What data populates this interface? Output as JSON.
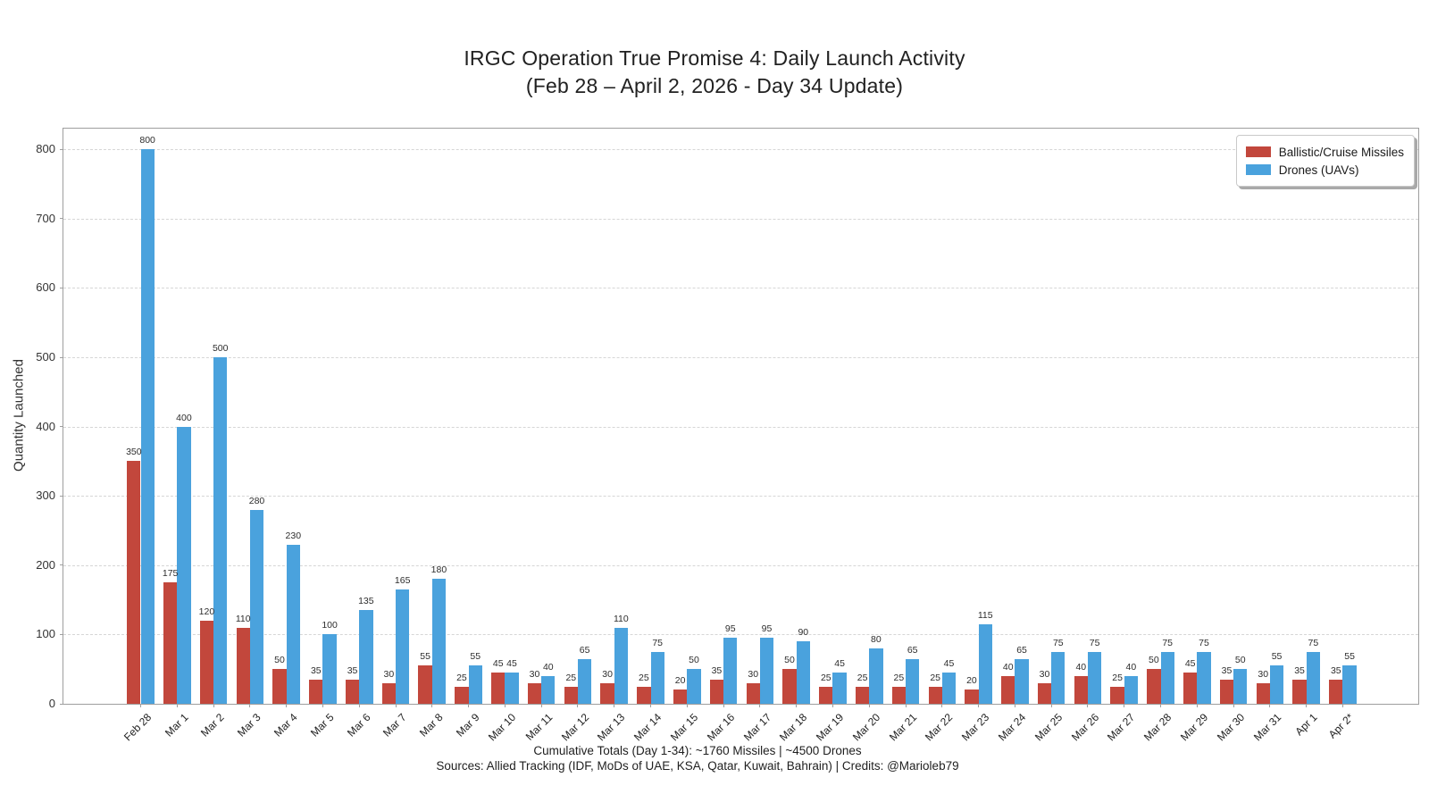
{
  "title": {
    "line1": "IRGC Operation True Promise 4: Daily Launch Activity",
    "line2": "(Feb 28 – April 2, 2026 - Day 34 Update)"
  },
  "axes": {
    "ylabel": "Quantity Launched"
  },
  "footer": {
    "line1": "Cumulative Totals (Day 1-34): ~1760 Missiles | ~4500 Drones",
    "line2": "Sources: Allied Tracking (IDF, MoDs of UAE, KSA, Qatar, Kuwait, Bahrain) | Credits: @Marioleb79"
  },
  "chart_data": {
    "type": "bar",
    "title": "IRGC Operation True Promise 4: Daily Launch Activity (Feb 28 – April 2, 2026 - Day 34 Update)",
    "xlabel": "",
    "ylabel": "Quantity Launched",
    "ylim": [
      0,
      830
    ],
    "yticks": [
      0,
      100,
      200,
      300,
      400,
      500,
      600,
      700,
      800
    ],
    "grid": "horizontal-dashed",
    "legend_position": "upper right",
    "value_labels": true,
    "categories": [
      "Feb 28",
      "Mar 1",
      "Mar 2",
      "Mar 3",
      "Mar 4",
      "Mar 5",
      "Mar 6",
      "Mar 7",
      "Mar 8",
      "Mar 9",
      "Mar 10",
      "Mar 11",
      "Mar 12",
      "Mar 13",
      "Mar 14",
      "Mar 15",
      "Mar 16",
      "Mar 17",
      "Mar 18",
      "Mar 19",
      "Mar 20",
      "Mar 21",
      "Mar 22",
      "Mar 23",
      "Mar 24",
      "Mar 25",
      "Mar 26",
      "Mar 27",
      "Mar 28",
      "Mar 29",
      "Mar 30",
      "Mar 31",
      "Apr 1",
      "Apr 2*"
    ],
    "series": [
      {
        "name": "Ballistic/Cruise Missiles",
        "color": "#c2473c",
        "values": [
          350,
          175,
          120,
          110,
          50,
          35,
          35,
          30,
          55,
          25,
          45,
          30,
          25,
          30,
          25,
          20,
          35,
          30,
          50,
          25,
          25,
          25,
          25,
          20,
          40,
          30,
          40,
          25,
          50,
          45,
          35,
          30,
          35,
          35
        ]
      },
      {
        "name": "Drones (UAVs)",
        "color": "#4aa2dd",
        "values": [
          800,
          400,
          500,
          280,
          230,
          100,
          135,
          165,
          180,
          55,
          45,
          40,
          65,
          110,
          75,
          50,
          95,
          95,
          90,
          45,
          80,
          65,
          45,
          115,
          65,
          75,
          75,
          40,
          75,
          75,
          50,
          55,
          75,
          55
        ]
      }
    ]
  }
}
